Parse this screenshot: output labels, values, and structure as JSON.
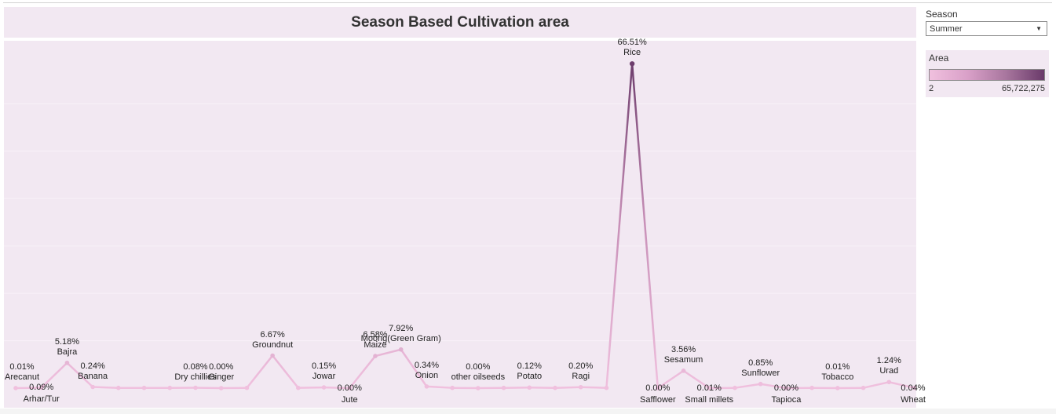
{
  "season_filter": {
    "label": "Season",
    "selected": "Summer"
  },
  "legend": {
    "title": "Area",
    "min_label": "2",
    "max_label": "65,722,275",
    "color_low": "#f0c0de",
    "color_high": "#6a3a6a"
  },
  "chart_data": {
    "type": "line",
    "title": "Season Based Cultivation area",
    "xlabel": "",
    "ylabel": "",
    "ylim": [
      0,
      68
    ],
    "grid": false,
    "legend": "right",
    "categories": [
      "Arecanut",
      "Arhar/Tur",
      "Bajra",
      "Banana",
      "",
      "",
      "",
      "Dry chillies",
      "Ginger",
      "",
      "Groundnut",
      "",
      "Jowar",
      "Jute",
      "Maize",
      "Moong(Green Gram)",
      "Onion",
      "",
      "other oilseeds",
      "",
      "Potato",
      "",
      "Ragi",
      "",
      "Rice",
      "Safflower",
      "Sesamum",
      "Small millets",
      "",
      "Sunflower",
      "Tapioca",
      "",
      "Tobacco",
      "",
      "Urad",
      "Wheat"
    ],
    "values": [
      0.01,
      0.09,
      5.18,
      0.24,
      0.05,
      0.05,
      0.05,
      0.08,
      0.0,
      0.05,
      6.67,
      0.05,
      0.15,
      0.0,
      6.58,
      7.92,
      0.34,
      0.05,
      0.0,
      0.05,
      0.12,
      0.05,
      0.2,
      0.05,
      66.51,
      0.0,
      3.56,
      0.01,
      0.05,
      0.85,
      0.0,
      0.05,
      0.01,
      0.05,
      1.24,
      0.04
    ],
    "labels": [
      "0.01%",
      "0.09%",
      "5.18%",
      "0.24%",
      "",
      "",
      "",
      "0.08%",
      "0.00%",
      "",
      "6.67%",
      "",
      "0.15%",
      "0.00%",
      "6.58%",
      "7.92%",
      "0.34%",
      "",
      "0.00%",
      "",
      "0.12%",
      "",
      "0.20%",
      "",
      "66.51%",
      "0.00%",
      "3.56%",
      "0.01%",
      "",
      "0.85%",
      "0.00%",
      "",
      "0.01%",
      "",
      "1.24%",
      "0.04%"
    ],
    "label_positions": [
      "above",
      "below",
      "above",
      "above",
      "",
      "",
      "",
      "above",
      "above",
      "",
      "above",
      "",
      "above",
      "below",
      "above",
      "above",
      "above",
      "",
      "above",
      "",
      "above",
      "",
      "above",
      "",
      "above",
      "below",
      "above",
      "below",
      "",
      "above",
      "below",
      "",
      "above",
      "",
      "above",
      "below"
    ]
  }
}
